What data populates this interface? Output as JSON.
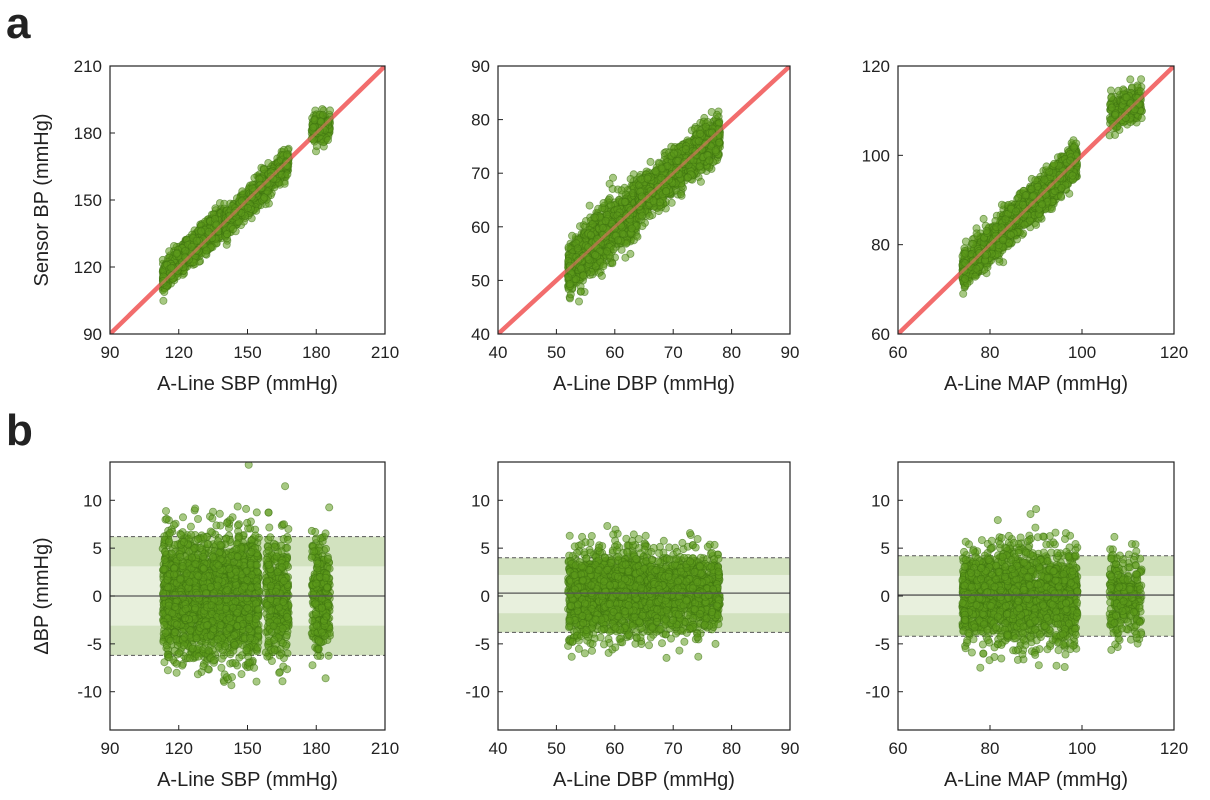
{
  "panel_labels": {
    "a": "a",
    "b": "b"
  },
  "colors": {
    "points_fill": "#5c9a1c",
    "points_stroke": "#3f7410",
    "identity_line": "#f26d6d",
    "band_outer": "#d2e2bf",
    "band_inner": "#e8f0dd",
    "mean_line": "#555555"
  },
  "chart_data": [
    {
      "type": "scatter",
      "id": "a1",
      "xlabel": "A-Line SBP (mmHg)",
      "ylabel": "Sensor BP (mmHg)",
      "xlim": [
        90,
        210
      ],
      "ylim": [
        90,
        210
      ],
      "xticks": [
        "90",
        "120",
        "150",
        "180",
        "210"
      ],
      "yticks": [
        "90",
        "120",
        "150",
        "180",
        "210"
      ],
      "identity_line": true,
      "clusters": [
        {
          "x": [
            113,
            140
          ],
          "slope": 1.0,
          "offset": 2,
          "spread": 3,
          "n": 1400
        },
        {
          "x": [
            140,
            168
          ],
          "slope": 1.0,
          "offset": -1,
          "spread": 3,
          "n": 1000
        },
        {
          "x": [
            178,
            186
          ],
          "slope": 0.3,
          "offset": 128,
          "spread": 3,
          "n": 250
        }
      ]
    },
    {
      "type": "scatter",
      "id": "a2",
      "xlabel": "A-Line DBP (mmHg)",
      "ylabel": "",
      "xlim": [
        40,
        90
      ],
      "ylim": [
        40,
        90
      ],
      "xticks": [
        "40",
        "50",
        "60",
        "70",
        "80",
        "90"
      ],
      "yticks": [
        "40",
        "50",
        "60",
        "70",
        "80",
        "90"
      ],
      "identity_line": true,
      "clusters": [
        {
          "x": [
            52,
            64
          ],
          "slope": 1.0,
          "offset": 0,
          "spread": 2.5,
          "n": 1400
        },
        {
          "x": [
            64,
            78
          ],
          "slope": 0.9,
          "offset": 7,
          "spread": 2.0,
          "n": 1200
        }
      ]
    },
    {
      "type": "scatter",
      "id": "a3",
      "xlabel": "A-Line MAP (mmHg)",
      "ylabel": "",
      "xlim": [
        60,
        120
      ],
      "ylim": [
        60,
        120
      ],
      "xticks": [
        "60",
        "80",
        "100",
        "120"
      ],
      "yticks": [
        "60",
        "80",
        "100",
        "120"
      ],
      "identity_line": true,
      "clusters": [
        {
          "x": [
            74,
            99
          ],
          "slope": 1.0,
          "offset": 0,
          "spread": 2.0,
          "n": 2000
        },
        {
          "x": [
            106,
            113
          ],
          "slope": 0.5,
          "offset": 56,
          "spread": 2.0,
          "n": 250
        }
      ]
    },
    {
      "type": "scatter",
      "id": "b1",
      "xlabel": "A-Line SBP (mmHg)",
      "ylabel": "ΔBP (mmHg)",
      "xlim": [
        90,
        210
      ],
      "ylim": [
        -14,
        14
      ],
      "xticks": [
        "90",
        "120",
        "150",
        "180",
        "210"
      ],
      "yticks": [
        "-10",
        "-5",
        "0",
        "5",
        "10"
      ],
      "bias": 0,
      "loa": [
        -6.2,
        6.2
      ],
      "inner_band": [
        -3.1,
        3.1
      ],
      "clusters": [
        {
          "x": [
            113,
            155
          ],
          "slope": 0,
          "offset": 0,
          "spread": 3.2,
          "n": 2200
        },
        {
          "x": [
            158,
            168
          ],
          "slope": 0,
          "offset": 0,
          "spread": 3.0,
          "n": 400
        },
        {
          "x": [
            178,
            186
          ],
          "slope": 0,
          "offset": 0,
          "spread": 2.8,
          "n": 300
        }
      ]
    },
    {
      "type": "scatter",
      "id": "b2",
      "xlabel": "A-Line DBP (mmHg)",
      "ylabel": "",
      "xlim": [
        40,
        90
      ],
      "ylim": [
        -14,
        14
      ],
      "xticks": [
        "40",
        "50",
        "60",
        "70",
        "80",
        "90"
      ],
      "yticks": [
        "-10",
        "-5",
        "0",
        "5",
        "10"
      ],
      "bias": 0.3,
      "loa": [
        -3.8,
        4.0
      ],
      "inner_band": [
        -1.8,
        2.2
      ],
      "clusters": [
        {
          "x": [
            52,
            66
          ],
          "slope": 0,
          "offset": 0.3,
          "spread": 2.2,
          "n": 1500
        },
        {
          "x": [
            66,
            78
          ],
          "slope": 0,
          "offset": 0.3,
          "spread": 2.0,
          "n": 1100
        }
      ]
    },
    {
      "type": "scatter",
      "id": "b3",
      "xlabel": "A-Line MAP (mmHg)",
      "ylabel": "",
      "xlim": [
        60,
        120
      ],
      "ylim": [
        -14,
        14
      ],
      "xticks": [
        "60",
        "80",
        "100",
        "120"
      ],
      "yticks": [
        "-10",
        "-5",
        "0",
        "5",
        "10"
      ],
      "bias": 0.1,
      "loa": [
        -4.2,
        4.2
      ],
      "inner_band": [
        -2.0,
        2.1
      ],
      "clusters": [
        {
          "x": [
            74,
            99
          ],
          "slope": 0,
          "offset": 0,
          "spread": 2.4,
          "n": 2100
        },
        {
          "x": [
            106,
            113
          ],
          "slope": 0,
          "offset": 0,
          "spread": 2.2,
          "n": 300
        }
      ]
    }
  ]
}
